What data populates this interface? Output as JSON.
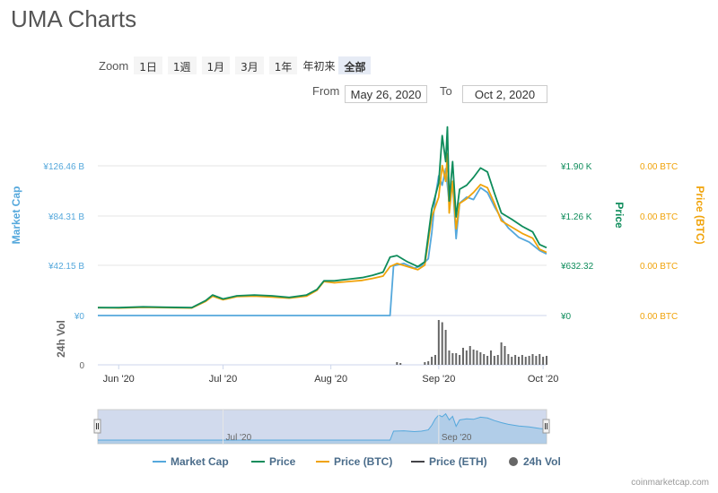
{
  "title": "UMA Charts",
  "zoom": {
    "label": "Zoom",
    "buttons": [
      "1日",
      "1週",
      "1月",
      "3月",
      "1年"
    ],
    "ytd_label": "年初来",
    "all_label": "全部"
  },
  "range": {
    "from_label": "From",
    "from_value": "May 26, 2020",
    "to_label": "To",
    "to_value": "Oct 2, 2020"
  },
  "credit": "coinmarketcap.com",
  "chart_data": {
    "type": "line",
    "x_tick_labels": [
      "Jun '20",
      "Jul '20",
      "Aug '20",
      "Sep '20",
      "Oct '20"
    ],
    "x_ticks_dates": [
      "2020-06-01",
      "2020-07-01",
      "2020-08-01",
      "2020-09-01",
      "2020-10-01"
    ],
    "x_range": [
      "2020-05-26",
      "2020-10-02"
    ],
    "axes": {
      "market_cap": {
        "title": "Market Cap",
        "ticks": [
          "¥0",
          "¥42.15 B",
          "¥84.31 B",
          "¥126.46 B"
        ],
        "range": [
          0,
          126.46
        ],
        "unit": "B JPY",
        "color": "#55a8dc"
      },
      "price": {
        "title": "Price",
        "ticks": [
          "¥0",
          "¥632.32",
          "¥1.26 K",
          "¥1.90 K"
        ],
        "range": [
          0,
          1896.96
        ],
        "unit": "JPY",
        "color": "#0e8c5b"
      },
      "price_btc": {
        "title": "Price (BTC)",
        "ticks": [
          "0.00 BTC",
          "0.00 BTC",
          "0.00 BTC",
          "0.00 BTC"
        ],
        "color": "#f0a30a"
      },
      "volume": {
        "title": "24h Vol",
        "ticks": [
          "0"
        ],
        "color": "#666666"
      }
    },
    "series": [
      {
        "name": "Market Cap",
        "color": "#55a8dc",
        "points": [
          [
            "2020-05-26",
            0
          ],
          [
            "2020-06-15",
            0
          ],
          [
            "2020-07-01",
            0
          ],
          [
            "2020-07-15",
            0
          ],
          [
            "2020-08-01",
            0
          ],
          [
            "2020-08-15",
            0
          ],
          [
            "2020-08-18",
            0
          ],
          [
            "2020-08-19",
            42
          ],
          [
            "2020-08-22",
            44
          ],
          [
            "2020-08-25",
            40
          ],
          [
            "2020-08-27",
            42
          ],
          [
            "2020-08-29",
            48
          ],
          [
            "2020-08-30",
            70
          ],
          [
            "2020-08-31",
            100
          ],
          [
            "2020-09-01",
            118
          ],
          [
            "2020-09-02",
            110
          ],
          [
            "2020-09-03",
            124
          ],
          [
            "2020-09-04",
            95
          ],
          [
            "2020-09-05",
            112
          ],
          [
            "2020-09-06",
            65
          ],
          [
            "2020-09-07",
            95
          ],
          [
            "2020-09-09",
            100
          ],
          [
            "2020-09-11",
            98
          ],
          [
            "2020-09-13",
            108
          ],
          [
            "2020-09-15",
            104
          ],
          [
            "2020-09-17",
            92
          ],
          [
            "2020-09-19",
            82
          ],
          [
            "2020-09-21",
            74
          ],
          [
            "2020-09-24",
            66
          ],
          [
            "2020-09-27",
            62
          ],
          [
            "2020-09-30",
            55
          ],
          [
            "2020-10-02",
            52
          ]
        ]
      },
      {
        "name": "Price",
        "color": "#0e8c5b",
        "points": [
          [
            "2020-05-26",
            100
          ],
          [
            "2020-06-01",
            100
          ],
          [
            "2020-06-08",
            110
          ],
          [
            "2020-06-15",
            105
          ],
          [
            "2020-06-22",
            100
          ],
          [
            "2020-06-26",
            190
          ],
          [
            "2020-06-28",
            260
          ],
          [
            "2020-07-01",
            210
          ],
          [
            "2020-07-05",
            250
          ],
          [
            "2020-07-10",
            260
          ],
          [
            "2020-07-15",
            250
          ],
          [
            "2020-07-20",
            230
          ],
          [
            "2020-07-25",
            260
          ],
          [
            "2020-07-28",
            330
          ],
          [
            "2020-07-30",
            440
          ],
          [
            "2020-08-02",
            440
          ],
          [
            "2020-08-06",
            460
          ],
          [
            "2020-08-10",
            480
          ],
          [
            "2020-08-13",
            510
          ],
          [
            "2020-08-16",
            550
          ],
          [
            "2020-08-18",
            740
          ],
          [
            "2020-08-20",
            760
          ],
          [
            "2020-08-23",
            680
          ],
          [
            "2020-08-26",
            620
          ],
          [
            "2020-08-28",
            680
          ],
          [
            "2020-08-30",
            1350
          ],
          [
            "2020-09-01",
            1680
          ],
          [
            "2020-09-02",
            2280
          ],
          [
            "2020-09-03",
            1950
          ],
          [
            "2020-09-03T12:00",
            2390
          ],
          [
            "2020-09-04",
            1450
          ],
          [
            "2020-09-05",
            1950
          ],
          [
            "2020-09-06",
            1250
          ],
          [
            "2020-09-07",
            1600
          ],
          [
            "2020-09-09",
            1650
          ],
          [
            "2020-09-11",
            1750
          ],
          [
            "2020-09-13",
            1870
          ],
          [
            "2020-09-15",
            1820
          ],
          [
            "2020-09-17",
            1550
          ],
          [
            "2020-09-19",
            1300
          ],
          [
            "2020-09-22",
            1220
          ],
          [
            "2020-09-25",
            1130
          ],
          [
            "2020-09-28",
            1060
          ],
          [
            "2020-09-30",
            900
          ],
          [
            "2020-10-02",
            860
          ]
        ]
      },
      {
        "name": "Price (BTC)",
        "color": "#f0a30a",
        "points": [
          [
            "2020-05-26",
            100
          ],
          [
            "2020-06-01",
            95
          ],
          [
            "2020-06-08",
            105
          ],
          [
            "2020-06-15",
            100
          ],
          [
            "2020-06-22",
            95
          ],
          [
            "2020-06-26",
            180
          ],
          [
            "2020-06-28",
            245
          ],
          [
            "2020-07-01",
            200
          ],
          [
            "2020-07-05",
            240
          ],
          [
            "2020-07-10",
            245
          ],
          [
            "2020-07-15",
            235
          ],
          [
            "2020-07-20",
            220
          ],
          [
            "2020-07-25",
            245
          ],
          [
            "2020-07-28",
            320
          ],
          [
            "2020-07-30",
            430
          ],
          [
            "2020-08-02",
            415
          ],
          [
            "2020-08-06",
            430
          ],
          [
            "2020-08-10",
            445
          ],
          [
            "2020-08-13",
            470
          ],
          [
            "2020-08-16",
            500
          ],
          [
            "2020-08-18",
            620
          ],
          [
            "2020-08-20",
            660
          ],
          [
            "2020-08-23",
            620
          ],
          [
            "2020-08-26",
            580
          ],
          [
            "2020-08-28",
            640
          ],
          [
            "2020-08-30",
            1250
          ],
          [
            "2020-09-01",
            1500
          ],
          [
            "2020-09-02",
            1900
          ],
          [
            "2020-09-03",
            1700
          ],
          [
            "2020-09-03T12:00",
            2050
          ],
          [
            "2020-09-04",
            1300
          ],
          [
            "2020-09-05",
            1700
          ],
          [
            "2020-09-06",
            1100
          ],
          [
            "2020-09-07",
            1420
          ],
          [
            "2020-09-09",
            1480
          ],
          [
            "2020-09-11",
            1560
          ],
          [
            "2020-09-13",
            1660
          ],
          [
            "2020-09-15",
            1620
          ],
          [
            "2020-09-17",
            1420
          ],
          [
            "2020-09-19",
            1200
          ],
          [
            "2020-09-22",
            1120
          ],
          [
            "2020-09-25",
            1040
          ],
          [
            "2020-09-28",
            980
          ],
          [
            "2020-09-30",
            840
          ],
          [
            "2020-10-02",
            800
          ]
        ]
      },
      {
        "name": "Price (ETH)",
        "color": "#434348",
        "points": []
      }
    ],
    "volume": {
      "name": "24h Vol",
      "color": "#666666",
      "points": [
        [
          "2020-08-20",
          0.06
        ],
        [
          "2020-08-21",
          0.04
        ],
        [
          "2020-08-28",
          0.06
        ],
        [
          "2020-08-29",
          0.08
        ],
        [
          "2020-08-30",
          0.18
        ],
        [
          "2020-08-31",
          0.22
        ],
        [
          "2020-09-01",
          1.0
        ],
        [
          "2020-09-02",
          0.95
        ],
        [
          "2020-09-03",
          0.78
        ],
        [
          "2020-09-04",
          0.32
        ],
        [
          "2020-09-05",
          0.26
        ],
        [
          "2020-09-06",
          0.26
        ],
        [
          "2020-09-07",
          0.22
        ],
        [
          "2020-09-08",
          0.38
        ],
        [
          "2020-09-09",
          0.32
        ],
        [
          "2020-09-10",
          0.42
        ],
        [
          "2020-09-11",
          0.34
        ],
        [
          "2020-09-12",
          0.32
        ],
        [
          "2020-09-13",
          0.28
        ],
        [
          "2020-09-14",
          0.24
        ],
        [
          "2020-09-15",
          0.2
        ],
        [
          "2020-09-16",
          0.32
        ],
        [
          "2020-09-17",
          0.2
        ],
        [
          "2020-09-18",
          0.22
        ],
        [
          "2020-09-19",
          0.5
        ],
        [
          "2020-09-20",
          0.42
        ],
        [
          "2020-09-21",
          0.24
        ],
        [
          "2020-09-22",
          0.18
        ],
        [
          "2020-09-23",
          0.22
        ],
        [
          "2020-09-24",
          0.18
        ],
        [
          "2020-09-25",
          0.22
        ],
        [
          "2020-09-26",
          0.18
        ],
        [
          "2020-09-27",
          0.2
        ],
        [
          "2020-09-28",
          0.24
        ],
        [
          "2020-09-29",
          0.2
        ],
        [
          "2020-09-30",
          0.24
        ],
        [
          "2020-10-01",
          0.18
        ],
        [
          "2020-10-02",
          0.2
        ]
      ]
    },
    "navigator": {
      "tick_labels": [
        "Jul '20",
        "Sep '20"
      ],
      "tick_dates": [
        "2020-07-01",
        "2020-09-01"
      ]
    },
    "legend": {
      "position": "bottom",
      "items": [
        {
          "name": "Market Cap",
          "color": "#55a8dc",
          "symbol": "line"
        },
        {
          "name": "Price",
          "color": "#0e8c5b",
          "symbol": "line"
        },
        {
          "name": "Price (BTC)",
          "color": "#f0a30a",
          "symbol": "line"
        },
        {
          "name": "Price (ETH)",
          "color": "#434348",
          "symbol": "line"
        },
        {
          "name": "24h Vol",
          "color": "#666666",
          "symbol": "circle"
        }
      ]
    },
    "grid": true
  }
}
